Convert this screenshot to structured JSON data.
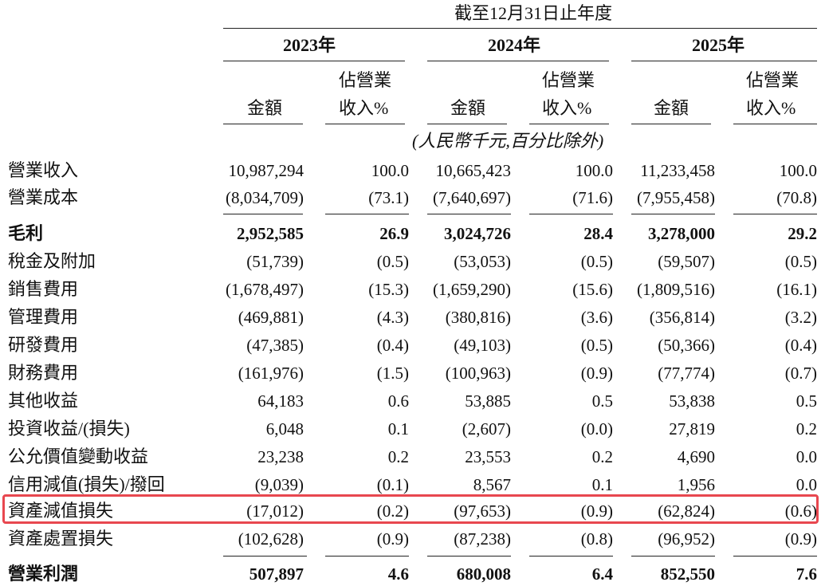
{
  "header": {
    "period": "截至12月31日止年度",
    "years": [
      "2023年",
      "2024年",
      "2025年"
    ],
    "col_amount": "金額",
    "col_pct_line1": "佔營業",
    "col_pct_line2": "收入%",
    "unit_note": "(人民幣千元,百分比除外)"
  },
  "rows": [
    {
      "label": "營業收入",
      "v": [
        "10,987,294",
        "100.0",
        "10,665,423",
        "100.0",
        "11,233,458",
        "100.0"
      ]
    },
    {
      "label": "營業成本",
      "v": [
        "(8,034,709)",
        "(73.1)",
        "(7,640,697)",
        "(71.6)",
        "(7,955,458)",
        "(70.8)"
      ]
    },
    {
      "label": "毛利",
      "v": [
        "2,952,585",
        "26.9",
        "3,024,726",
        "28.4",
        "3,278,000",
        "29.2"
      ],
      "bold": true
    },
    {
      "label": "稅金及附加",
      "v": [
        "(51,739)",
        "(0.5)",
        "(53,053)",
        "(0.5)",
        "(59,507)",
        "(0.5)"
      ]
    },
    {
      "label": "銷售費用",
      "v": [
        "(1,678,497)",
        "(15.3)",
        "(1,659,290)",
        "(15.6)",
        "(1,809,516)",
        "(16.1)"
      ]
    },
    {
      "label": "管理費用",
      "v": [
        "(469,881)",
        "(4.3)",
        "(380,816)",
        "(3.6)",
        "(356,814)",
        "(3.2)"
      ]
    },
    {
      "label": "研發費用",
      "v": [
        "(47,385)",
        "(0.4)",
        "(49,103)",
        "(0.5)",
        "(50,366)",
        "(0.4)"
      ]
    },
    {
      "label": "財務費用",
      "v": [
        "(161,976)",
        "(1.5)",
        "(100,963)",
        "(0.9)",
        "(77,774)",
        "(0.7)"
      ]
    },
    {
      "label": "其他收益",
      "v": [
        "64,183",
        "0.6",
        "53,885",
        "0.5",
        "53,838",
        "0.5"
      ]
    },
    {
      "label": "投資收益/(損失)",
      "v": [
        "6,048",
        "0.1",
        "(2,607)",
        "(0.0)",
        "27,819",
        "0.2"
      ]
    },
    {
      "label": "公允價值變動收益",
      "v": [
        "23,238",
        "0.2",
        "23,553",
        "0.2",
        "4,690",
        "0.0"
      ]
    },
    {
      "label": "信用減值(損失)/撥回",
      "v": [
        "(9,039)",
        "(0.1)",
        "8,567",
        "0.1",
        "1,956",
        "0.0"
      ]
    },
    {
      "label": "資產減值損失",
      "v": [
        "(17,012)",
        "(0.2)",
        "(97,653)",
        "(0.9)",
        "(62,824)",
        "(0.6)"
      ]
    },
    {
      "label": "資產處置損失",
      "v": [
        "(102,628)",
        "(0.9)",
        "(87,238)",
        "(0.8)",
        "(96,952)",
        "(0.9)"
      ]
    },
    {
      "label": "營業利潤",
      "v": [
        "507,897",
        "4.6",
        "680,008",
        "6.4",
        "852,550",
        "7.6"
      ],
      "bold": true
    }
  ],
  "highlight_color": "#e8474f"
}
